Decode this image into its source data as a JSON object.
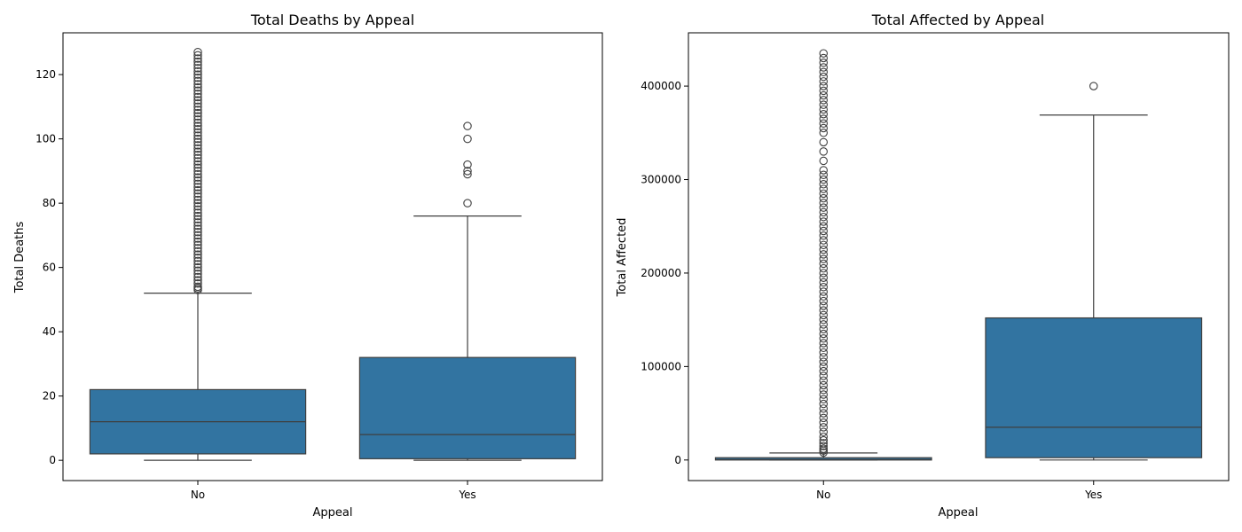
{
  "chart_data": [
    {
      "type": "box",
      "title": "Total Deaths by Appeal",
      "xlabel": "Appeal",
      "ylabel": "Total Deaths",
      "categories": [
        "No",
        "Yes"
      ],
      "yticks": [
        0,
        20,
        40,
        60,
        80,
        100,
        120
      ],
      "ylim": [
        -6.3,
        133
      ],
      "grid": false,
      "colors": {
        "box": "#3274a1",
        "line": "#3f3f3f"
      },
      "boxes": [
        {
          "category": "No",
          "q1": 2,
          "median": 12,
          "q3": 22,
          "whisker_low": 0,
          "whisker_high": 52,
          "outliers": [
            53,
            53.5,
            54,
            55,
            56,
            57,
            58,
            59,
            60,
            61,
            62,
            63,
            64,
            65,
            66,
            67,
            68,
            69,
            70,
            71,
            72,
            73,
            74,
            75,
            76,
            77,
            78,
            79,
            80,
            81,
            82,
            83,
            84,
            85,
            86,
            87,
            88,
            89,
            90,
            91,
            92,
            93,
            94,
            95,
            96,
            97,
            98,
            99,
            100,
            101,
            102,
            103,
            104,
            105,
            106,
            107,
            108,
            109,
            110,
            111,
            112,
            113,
            114,
            115,
            116,
            117,
            118,
            119,
            120,
            121,
            122,
            123,
            124,
            125,
            126,
            127
          ]
        },
        {
          "category": "Yes",
          "q1": 0.5,
          "median": 8,
          "q3": 32,
          "whisker_low": 0,
          "whisker_high": 76,
          "outliers": [
            80,
            89,
            90,
            92,
            100,
            104
          ]
        }
      ]
    },
    {
      "type": "box",
      "title": "Total Affected by Appeal",
      "xlabel": "Appeal",
      "ylabel": "Total Affected",
      "categories": [
        "No",
        "Yes"
      ],
      "yticks": [
        0,
        100000,
        200000,
        300000,
        400000
      ],
      "ylim": [
        -22000,
        457000
      ],
      "grid": false,
      "colors": {
        "box": "#3274a1",
        "line": "#3f3f3f"
      },
      "boxes": [
        {
          "category": "No",
          "q1": 0,
          "median": 500,
          "q3": 2500,
          "whisker_low": 0,
          "whisker_high": 7500,
          "outliers": [
            8000,
            10000,
            12000,
            15000,
            18000,
            21000,
            25000,
            30000,
            35000,
            40000,
            45000,
            50000,
            55000,
            60000,
            65000,
            70000,
            75000,
            80000,
            85000,
            90000,
            95000,
            100000,
            105000,
            110000,
            115000,
            120000,
            125000,
            130000,
            135000,
            140000,
            145000,
            150000,
            155000,
            160000,
            165000,
            170000,
            175000,
            180000,
            185000,
            190000,
            195000,
            200000,
            205000,
            210000,
            215000,
            220000,
            225000,
            230000,
            235000,
            240000,
            245000,
            250000,
            255000,
            260000,
            265000,
            270000,
            275000,
            280000,
            285000,
            290000,
            295000,
            300000,
            305000,
            310000,
            320000,
            330000,
            340000,
            350000,
            355000,
            360000,
            365000,
            370000,
            375000,
            380000,
            385000,
            390000,
            395000,
            400000,
            405000,
            410000,
            415000,
            420000,
            425000,
            430000,
            435000
          ]
        },
        {
          "category": "Yes",
          "q1": 2500,
          "median": 35000,
          "q3": 152000,
          "whisker_low": 0,
          "whisker_high": 369000,
          "outliers": [
            400000
          ]
        }
      ]
    }
  ]
}
